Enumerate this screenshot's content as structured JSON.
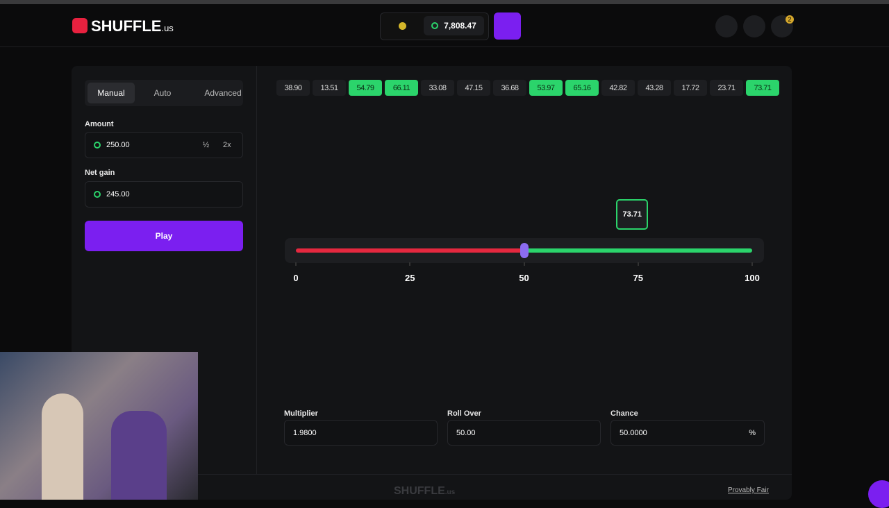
{
  "header": {
    "logo": "SHUFFLE",
    "logo_suffix": ".us",
    "balance": "7,808.47",
    "notifications": "2"
  },
  "sidebar": {
    "tabs": [
      "Manual",
      "Auto",
      "Advanced"
    ],
    "amount_label": "Amount",
    "amount": "250.00",
    "half": "½",
    "double": "2x",
    "net_gain_label": "Net gain",
    "net_gain": "245.00",
    "play": "Play"
  },
  "history": [
    {
      "value": "38.90",
      "win": false
    },
    {
      "value": "13.51",
      "win": false
    },
    {
      "value": "54.79",
      "win": true
    },
    {
      "value": "66.11",
      "win": true
    },
    {
      "value": "33.08",
      "win": false
    },
    {
      "value": "47.15",
      "win": false
    },
    {
      "value": "36.68",
      "win": false
    },
    {
      "value": "53.97",
      "win": true
    },
    {
      "value": "65.16",
      "win": true
    },
    {
      "value": "42.82",
      "win": false
    },
    {
      "value": "43.28",
      "win": false
    },
    {
      "value": "17.72",
      "win": false
    },
    {
      "value": "23.71",
      "win": false
    },
    {
      "value": "73.71",
      "win": true
    }
  ],
  "slider": {
    "result": "73.71",
    "ticks": [
      0,
      25,
      50,
      75,
      100
    ]
  },
  "inputs": {
    "multiplier_label": "Multiplier",
    "multiplier": "1.9800",
    "roll_over_label": "Roll Over",
    "roll_over": "50.00",
    "chance_label": "Chance",
    "chance": "50.0000",
    "chance_unit": "%"
  },
  "footer": {
    "logo": "SHUFFLE",
    "logo_suffix": ".us",
    "provably_fair": "Provably Fair"
  }
}
